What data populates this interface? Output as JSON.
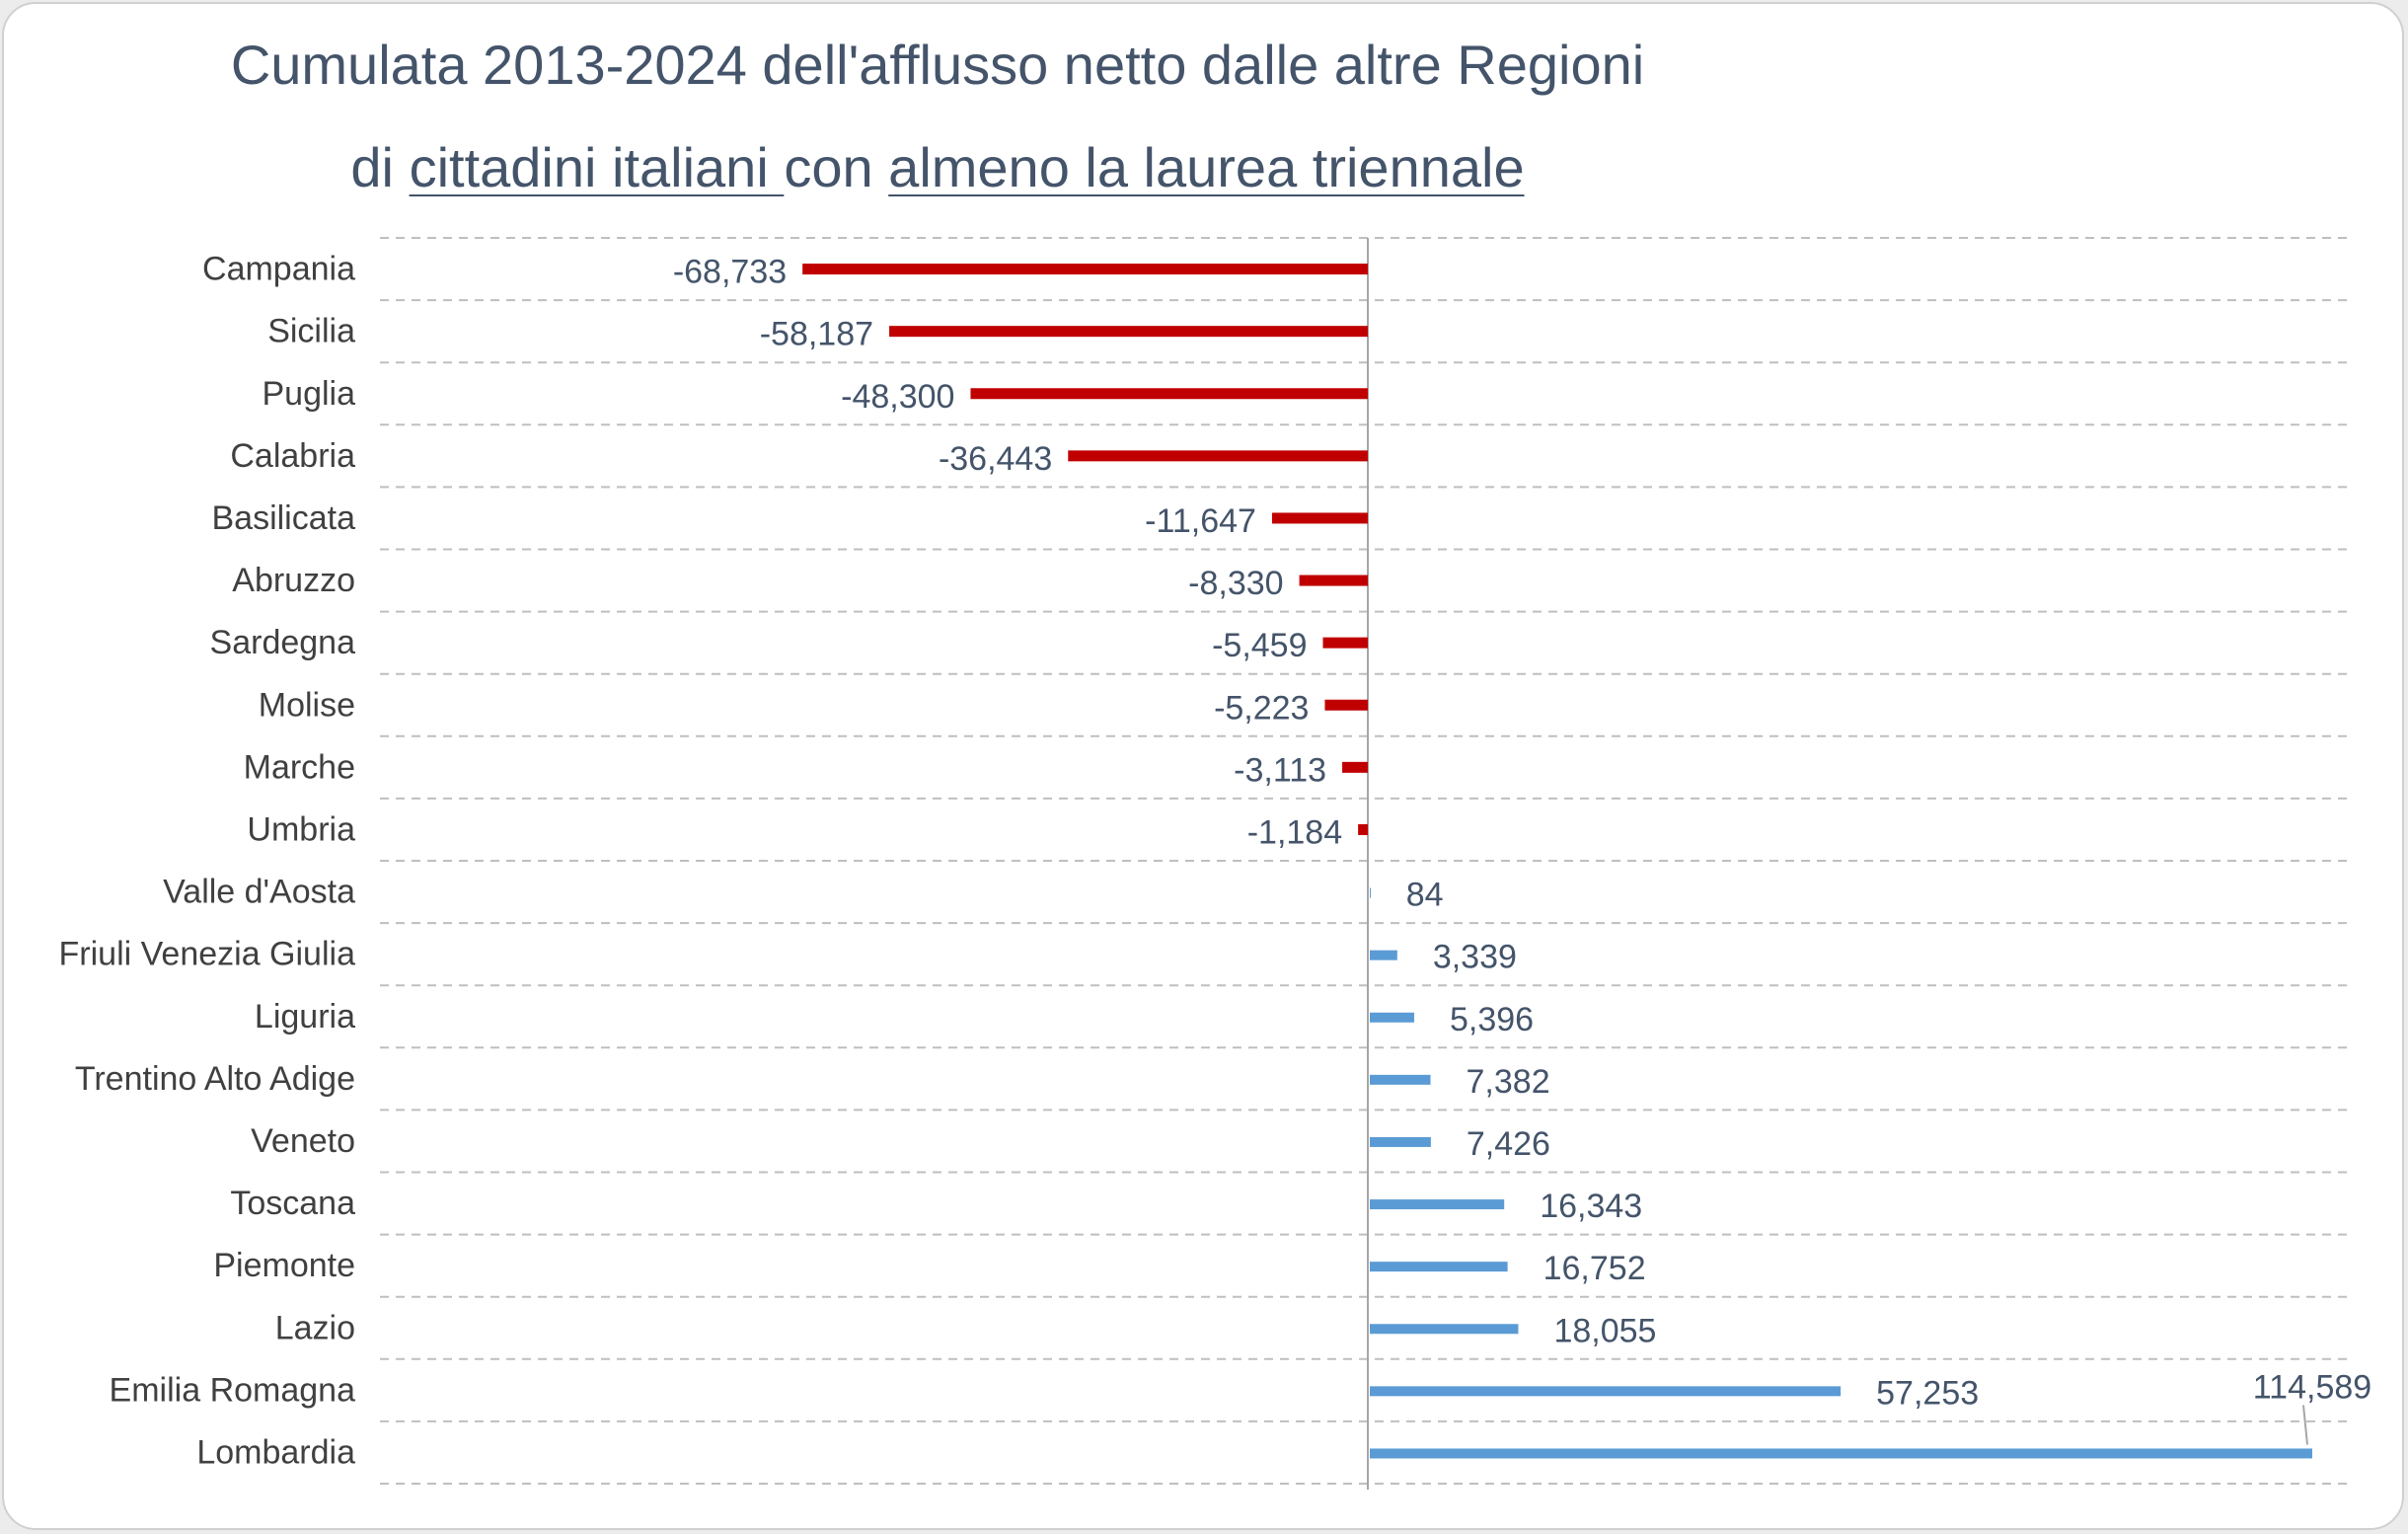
{
  "chart_data": {
    "type": "bar",
    "orientation": "horizontal",
    "title_line1": "Cumulata 2013-2024 dell'afflusso netto dalle altre Regioni",
    "title_line2_parts": [
      "di ",
      "cittadini italiani ",
      "con ",
      "almeno la laurea triennale"
    ],
    "categories": [
      "Campania",
      "Sicilia",
      "Puglia",
      "Calabria",
      "Basilicata",
      "Abruzzo",
      "Sardegna",
      "Molise",
      "Marche",
      "Umbria",
      "Valle d'Aosta",
      "Friuli Venezia Giulia",
      "Liguria",
      "Trentino Alto Adige",
      "Veneto",
      "Toscana",
      "Piemonte",
      "Lazio",
      "Emilia Romagna",
      "Lombardia"
    ],
    "values": [
      -68733,
      -58187,
      -48300,
      -36443,
      -11647,
      -8330,
      -5459,
      -5223,
      -3113,
      -1184,
      84,
      3339,
      5396,
      7382,
      7426,
      16343,
      16752,
      18055,
      57253,
      114589
    ],
    "value_labels": [
      "-68,733",
      "-58,187",
      "-48,300",
      "-36,443",
      "-11,647",
      "-8,330",
      "-5,459",
      "-5,223",
      "-3,113",
      "-1,184",
      "84",
      "3,339",
      "5,396",
      "7,382",
      "7,426",
      "16,343",
      "16,752",
      "18,055",
      "57,253",
      "114,589"
    ],
    "xlim": [
      -120000,
      120000
    ],
    "xlabel": "",
    "ylabel": "",
    "gridlines": "dashed-horizontal",
    "colors": {
      "negative": "#c00000",
      "positive": "#5b9bd5",
      "text": "#44546a",
      "category_text": "#404040",
      "grid": "#bfbfbf",
      "axis": "#a6a6a6"
    }
  }
}
